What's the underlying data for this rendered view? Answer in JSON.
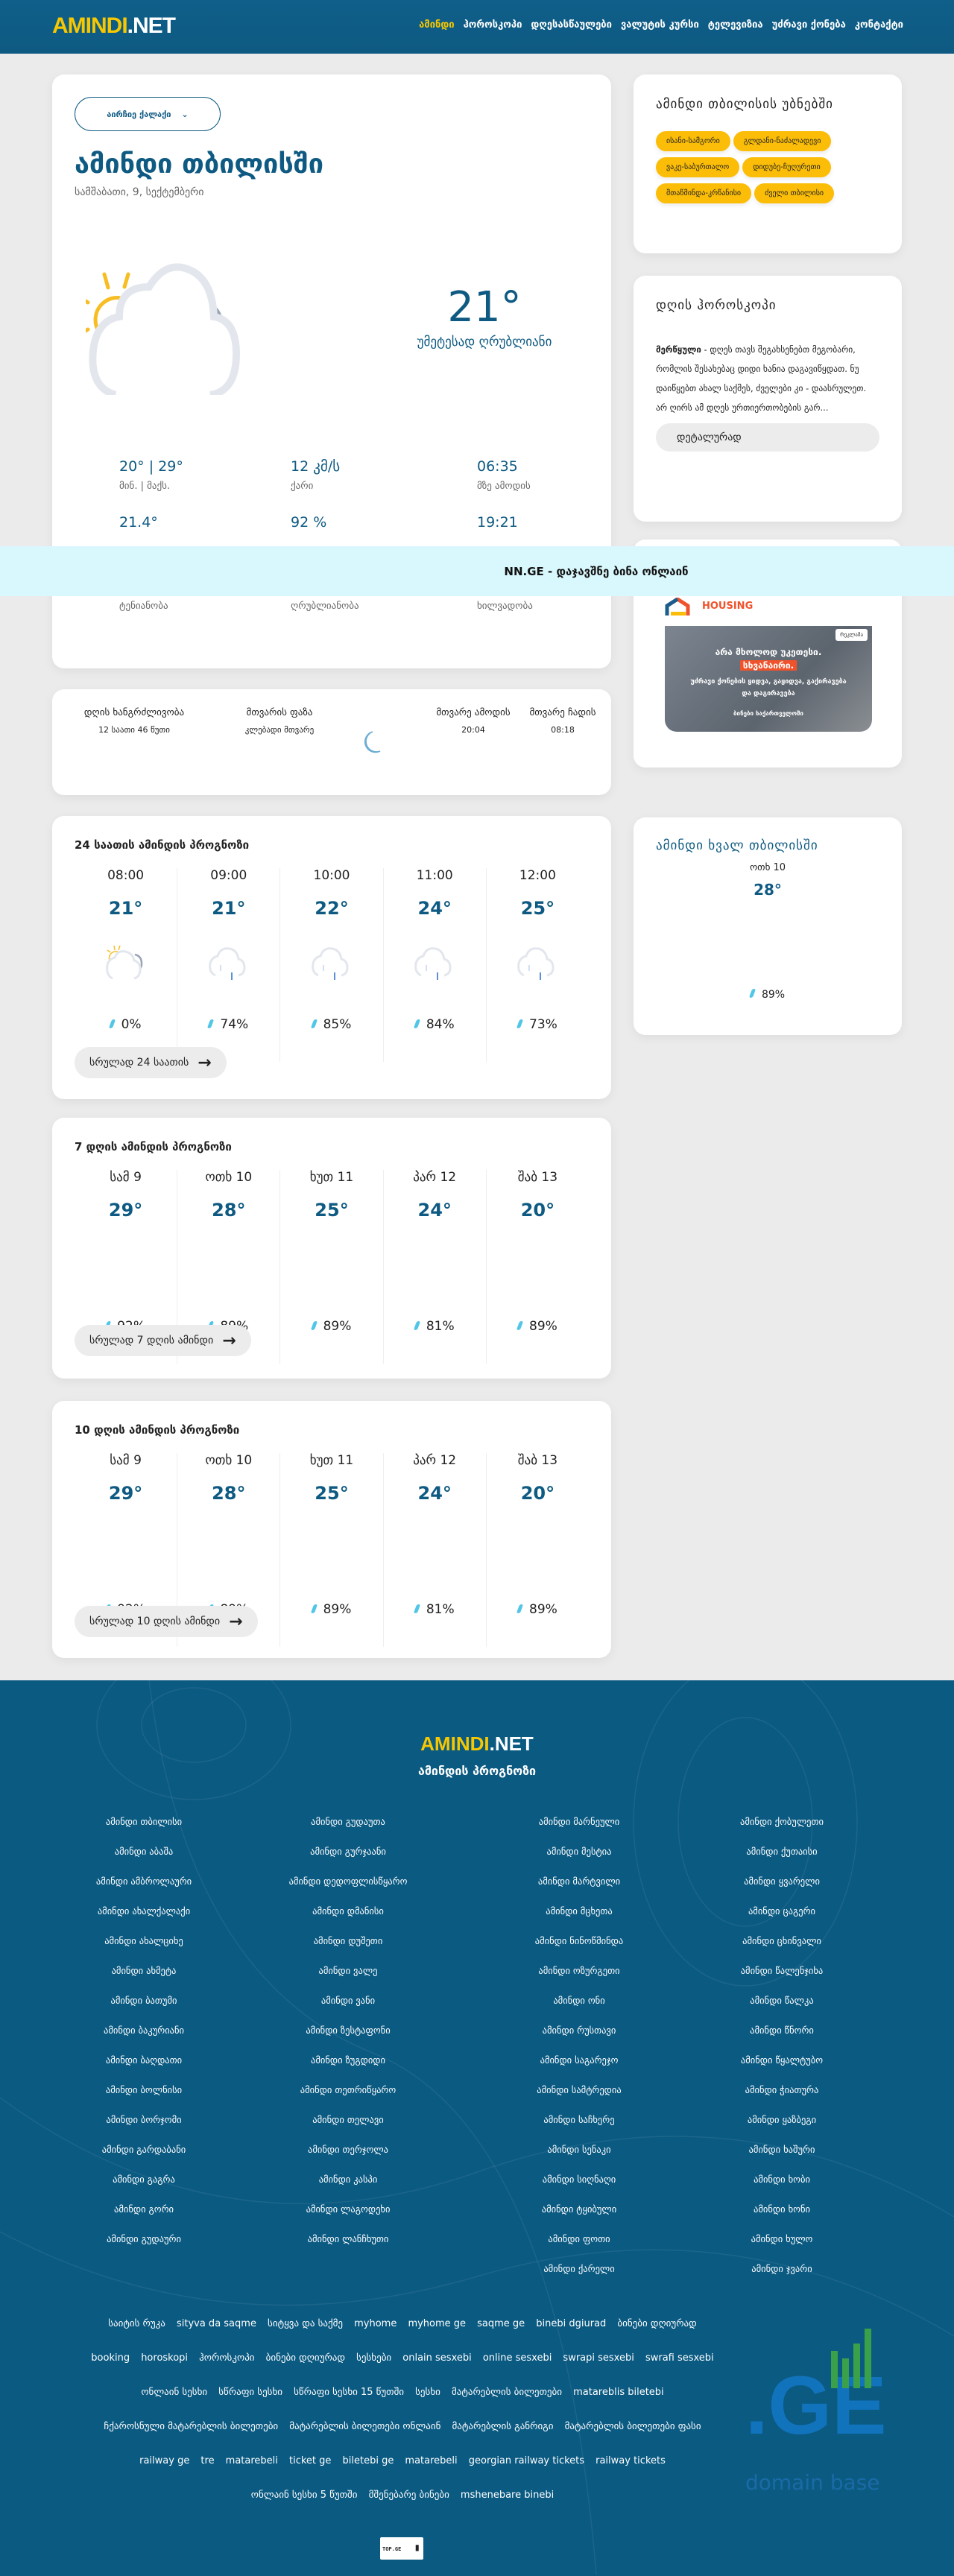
{
  "header": {
    "logo_a": "AMINDI",
    "logo_b": ".NET",
    "nav": [
      "ამინდი",
      "ჰოროსკოპი",
      "დღესასწაულები",
      "ვალუტის კურსი",
      "ტელევიზია",
      "უძრავი ქონება",
      "კონტაქტი"
    ]
  },
  "main": {
    "city_select": "აირჩიე ქალაქი",
    "title": "ამინდი თბილისში",
    "date": "სამშაბათი, 9, სექტემბერი",
    "weather_icon": "partly-cloudy-icon",
    "temp": "21°",
    "desc": "უმეტესად ღრუბლიანი",
    "stats": [
      {
        "v": "20° | 29°",
        "l": "მინ. | მაქს."
      },
      {
        "v": "12 კმ/ს",
        "l": "ქარი"
      },
      {
        "v": "06:35",
        "l": "მზე ამოდის"
      },
      {
        "v": "21.4°"
      },
      {
        "v": "92 %"
      },
      {
        "v": "19:21"
      },
      {
        "l": "ტენიანობა"
      },
      {
        "l": "ღრუბლიანობა"
      },
      {
        "l": "ხილვადობა"
      }
    ]
  },
  "banner": "NN.GE - დაჯავშნე ბინა ონლაინ",
  "moon": {
    "day_len_l": "დღის ხანგრძლივობა",
    "day_len_v": "12 საათი 46 წუთი",
    "phase_l": "მთვარის ფაზა",
    "phase_v": "კლებადი მთვარე",
    "rise_l": "მთვარე ამოდის",
    "rise_v": "20:04",
    "set_l": "მთვარე ჩადის",
    "set_v": "08:18"
  },
  "hourly": {
    "title": "24 საათის ამინდის პროგნოზი",
    "items": [
      {
        "h": "08:00",
        "t": "21°",
        "p": "0%",
        "icon": "partly-cloudy-icon"
      },
      {
        "h": "09:00",
        "t": "21°",
        "p": "74%",
        "icon": "rain-icon"
      },
      {
        "h": "10:00",
        "t": "22°",
        "p": "85%",
        "icon": "rain-icon"
      },
      {
        "h": "11:00",
        "t": "24°",
        "p": "84%",
        "icon": "rain-icon"
      },
      {
        "h": "12:00",
        "t": "25°",
        "p": "73%",
        "icon": "rain-icon"
      }
    ],
    "more": "სრულად 24 საათის"
  },
  "week": {
    "title": "7 დღის ამინდის პროგნოზი",
    "items": [
      {
        "h": "სამ 9",
        "t": "29°",
        "p": "92%"
      },
      {
        "h": "ოთხ 10",
        "t": "28°",
        "p": "89%"
      },
      {
        "h": "ხუთ 11",
        "t": "25°",
        "p": "89%"
      },
      {
        "h": "პარ 12",
        "t": "24°",
        "p": "81%"
      },
      {
        "h": "შაბ 13",
        "t": "20°",
        "p": "89%"
      }
    ],
    "more": "სრულად 7 დღის ამინდი"
  },
  "ten": {
    "title": "10 დღის ამინდის პროგნოზი",
    "items": [
      {
        "h": "სამ 9",
        "t": "29°",
        "p": "92%"
      },
      {
        "h": "ოთხ 10",
        "t": "28°",
        "p": "89%"
      },
      {
        "h": "ხუთ 11",
        "t": "25°",
        "p": "89%"
      },
      {
        "h": "პარ 12",
        "t": "24°",
        "p": "81%"
      },
      {
        "h": "შაბ 13",
        "t": "20°",
        "p": "89%"
      }
    ],
    "more": "სრულად 10 დღის ამინდი"
  },
  "districts": {
    "title": "ამინდი თბილისის უბნებში",
    "items": [
      "ისანი-სამგორი",
      "გლდანი-ნაძალადევი",
      "ვაკე-საბურთალო",
      "დიდუბე-ჩუღურეთი",
      "მთაწმინდა-კრწანისი",
      "ძველი თბილისი"
    ]
  },
  "horoscope": {
    "title": "დღის ჰოროსკოპი",
    "sign": "მერწყული",
    "text": " - დღეს თავს შეგახსენებთ მეგობარი, რომლის შესახებაც დიდი ხანია დაგავიწყდათ. ნუ დაიწყებთ ახალ საქმეს, ძველები კი - დაასრულეთ. არ ღირს ამ დღეს ურთიერთობების გარ...",
    "button": "დეტალურად"
  },
  "ad": {
    "brand": "HOUSING",
    "badge": "რეკლამა",
    "line1": "არა მხოლოდ უკეთესი.",
    "line2": "სხვანაირი.",
    "line3": "უძრავი ქონების ყიდვა, გაყიდვა, გაქირავება და დაგირავება",
    "line4": "ბინები საქართველოში"
  },
  "tomorrow": {
    "title": "ამინდი ხვალ თბილისში",
    "day": "ოთხ 10",
    "temp": "28°",
    "precip": "89%"
  },
  "footer": {
    "logo_a": "AMINDI",
    "logo_b": ".NET",
    "subtitle": "ამინდის პროგნოზი",
    "columns": [
      [
        "ამინდი თბილისი",
        "ამინდი აბაშა",
        "ამინდი ამბროლაური",
        "ამინდი ახალქალაქი",
        "ამინდი ახალციხე",
        "ამინდი ახმეტა",
        "ამინდი ბათუმი",
        "ამინდი ბაკურიანი",
        "ამინდი ბაღდათი",
        "ამინდი ბოლნისი",
        "ამინდი ბორჯომი",
        "ამინდი გარდაბანი",
        "ამინდი გაგრა",
        "ამინდი გორი",
        "ამინდი გუდაური"
      ],
      [
        "ამინდი გუდაუთა",
        "ამინდი გურჯაანი",
        "ამინდი დედოფლისწყარო",
        "ამინდი დმანისი",
        "ამინდი დუშეთი",
        "ამინდი ვალე",
        "ამინდი ვანი",
        "ამინდი ზესტაფონი",
        "ამინდი ზუგდიდი",
        "ამინდი თეთრიწყარო",
        "ამინდი თელავი",
        "ამინდი თერჯოლა",
        "ამინდი კასპი",
        "ამინდი ლაგოდეხი",
        "ამინდი ლანჩხუთი"
      ],
      [
        "ამინდი მარნეული",
        "ამინდი მესტია",
        "ამინდი მარტვილი",
        "ამინდი მცხეთა",
        "ამინდი ნინოწმინდა",
        "ამინდი ოზურგეთი",
        "ამინდი ონი",
        "ამინდი რუსთავი",
        "ამინდი საგარეჯო",
        "ამინდი სამტრედია",
        "ამინდი საჩხერე",
        "ამინდი სენაკი",
        "ამინდი სიღნაღი",
        "ამინდი ტყიბული",
        "ამინდი ფოთი",
        "ამინდი ქარელი"
      ],
      [
        "ამინდი ქობულეთი",
        "ამინდი ქუთაისი",
        "ამინდი ყვარელი",
        "ამინდი ცაგერი",
        "ამინდი ცხინვალი",
        "ამინდი წალენჯიხა",
        "ამინდი წალკა",
        "ამინდი წნორი",
        "ამინდი წყალტუბო",
        "ამინდი ჭიათურა",
        "ამინდი ყაზბეგი",
        "ამინდი ხაშური",
        "ამინდი ხობი",
        "ამინდი ხონი",
        "ამინდი ხულო",
        "ამინდი ჯვარი"
      ]
    ],
    "tags": [
      "საიტის რუკა",
      "sityva da saqme",
      "სიტყვა და საქმე",
      "myhome",
      "myhome ge",
      "saqme ge",
      "binebi dgiurad",
      "ბინები დღიურად",
      "booking",
      "horoskopi",
      "ჰოროსკოპი",
      "ბინები დღიურად",
      "სესხები",
      "onlain sesxebi",
      "online sesxebi",
      "swrapi sesxebi",
      "swrafi sesxebi",
      "ონლაინ სესხი",
      "სწრაფი სესხი",
      "სწრაფი სესხი 15 წუთში",
      "სესხი",
      "მატარებლის ბილეთები",
      "matareblis biletebi",
      "ჩქაროსნული მატარებლის ბილეთები",
      "მატარებლის ბილეთები ონლაინ",
      "მატარებლის განრიგი",
      "მატარებლის ბილეთები ფასი",
      "railway ge",
      "tre",
      "matarebeli",
      "ticket ge",
      "biletebi ge",
      "matarebeli",
      "georgian railway tickets",
      "railway tickets",
      "ონლაინ სესხი 5 წუთში",
      "მშენებარე ბინები",
      "mshenebare binebi"
    ],
    "counter": "TOP.GE",
    "domain_logo": ".GE",
    "domain_text": "domain base"
  }
}
